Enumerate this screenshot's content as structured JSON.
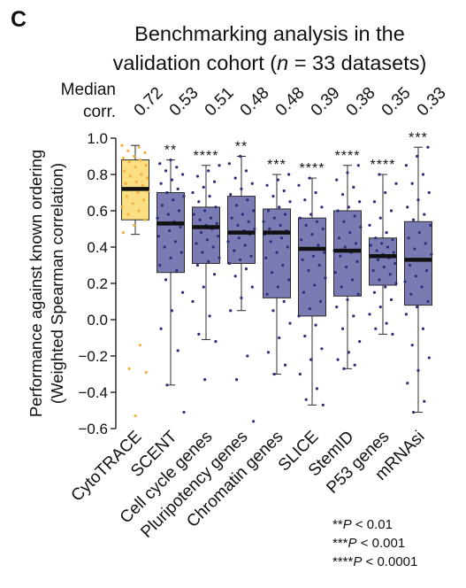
{
  "panel_label": "C",
  "chart_data": {
    "type": "box",
    "title_line1": "Benchmarking analysis in the",
    "title_line2_pre": "validation cohort (",
    "title_line2_n": "n",
    "title_line2_post": " = 33 datasets)",
    "ylabel_line1": "Performance against known ordering",
    "ylabel_line2": "(Weighted Spearman correlation)",
    "median_label_line1": "Median",
    "median_label_line2": "corr.",
    "ylim": [
      -0.6,
      1.0
    ],
    "yticks": [
      "1.0",
      "0.8",
      "0.6",
      "0.4",
      "0.2",
      "0.0",
      "−0.2",
      "−0.4",
      "−0.6"
    ],
    "ytick_values": [
      1.0,
      0.8,
      0.6,
      0.4,
      0.2,
      0.0,
      -0.2,
      -0.4,
      -0.6
    ],
    "categories": [
      "CytoTRACE",
      "SCENT",
      "Cell cycle genes",
      "Pluripotency genes",
      "Chromatin genes",
      "SLICE",
      "StemID",
      "P53 genes",
      "mRNAsi"
    ],
    "medians_text": [
      "0.72",
      "0.53",
      "0.51",
      "0.48",
      "0.48",
      "0.39",
      "0.38",
      "0.35",
      "0.33"
    ],
    "significance": [
      "",
      "**",
      "****",
      "**",
      "***",
      "****",
      "****",
      "****",
      "***"
    ],
    "boxes": [
      {
        "median": 0.72,
        "q1": 0.55,
        "q3": 0.88,
        "whisker_low": 0.47,
        "whisker_high": 0.96,
        "color": "#fcdf82"
      },
      {
        "median": 0.53,
        "q1": 0.26,
        "q3": 0.7,
        "whisker_low": -0.36,
        "whisker_high": 0.88,
        "color": "#7b7bb3"
      },
      {
        "median": 0.51,
        "q1": 0.31,
        "q3": 0.62,
        "whisker_low": -0.11,
        "whisker_high": 0.85,
        "color": "#7b7bb3"
      },
      {
        "median": 0.48,
        "q1": 0.31,
        "q3": 0.68,
        "whisker_low": 0.05,
        "whisker_high": 0.9,
        "color": "#7b7bb3"
      },
      {
        "median": 0.48,
        "q1": 0.12,
        "q3": 0.61,
        "whisker_low": -0.3,
        "whisker_high": 0.8,
        "color": "#7b7bb3"
      },
      {
        "median": 0.39,
        "q1": 0.02,
        "q3": 0.56,
        "whisker_low": -0.47,
        "whisker_high": 0.78,
        "color": "#7b7bb3"
      },
      {
        "median": 0.38,
        "q1": 0.13,
        "q3": 0.6,
        "whisker_low": -0.27,
        "whisker_high": 0.85,
        "color": "#7b7bb3"
      },
      {
        "median": 0.35,
        "q1": 0.19,
        "q3": 0.45,
        "whisker_low": -0.08,
        "whisker_high": 0.8,
        "color": "#7b7bb3"
      },
      {
        "median": 0.33,
        "q1": 0.08,
        "q3": 0.54,
        "whisker_low": -0.51,
        "whisker_high": 0.95,
        "color": "#7b7bb3"
      }
    ],
    "points": [
      [
        0.96,
        0.95,
        0.93,
        0.92,
        0.9,
        0.89,
        0.88,
        0.87,
        0.85,
        0.84,
        0.82,
        0.8,
        0.79,
        0.78,
        0.76,
        0.75,
        0.74,
        0.72,
        0.71,
        0.7,
        0.68,
        0.66,
        0.64,
        0.62,
        0.6,
        0.58,
        0.55,
        0.52,
        0.48,
        -0.14,
        -0.27,
        -0.29,
        -0.53
      ],
      [
        0.88,
        0.86,
        0.84,
        0.82,
        0.8,
        0.77,
        0.75,
        0.72,
        0.7,
        0.68,
        0.66,
        0.63,
        0.6,
        0.58,
        0.56,
        0.54,
        0.53,
        0.51,
        0.49,
        0.46,
        0.43,
        0.4,
        0.37,
        0.34,
        0.3,
        0.27,
        0.22,
        0.15,
        0.05,
        -0.05,
        -0.17,
        -0.36,
        -0.51
      ],
      [
        0.85,
        0.82,
        0.79,
        0.76,
        0.73,
        0.7,
        0.68,
        0.65,
        0.62,
        0.6,
        0.58,
        0.56,
        0.55,
        0.53,
        0.52,
        0.51,
        0.5,
        0.48,
        0.46,
        0.44,
        0.42,
        0.4,
        0.37,
        0.34,
        0.32,
        0.3,
        0.25,
        0.18,
        0.1,
        0.02,
        -0.08,
        -0.12,
        -0.33
      ],
      [
        0.9,
        0.86,
        0.82,
        0.78,
        0.75,
        0.72,
        0.69,
        0.66,
        0.63,
        0.6,
        0.58,
        0.56,
        0.54,
        0.52,
        0.5,
        0.49,
        0.48,
        0.47,
        0.45,
        0.43,
        0.41,
        0.38,
        0.35,
        0.33,
        0.31,
        0.28,
        0.24,
        0.18,
        0.12,
        0.05,
        -0.2,
        -0.33,
        -0.56
      ],
      [
        0.8,
        0.77,
        0.74,
        0.71,
        0.68,
        0.65,
        0.62,
        0.6,
        0.58,
        0.56,
        0.54,
        0.52,
        0.5,
        0.49,
        0.48,
        0.47,
        0.45,
        0.43,
        0.4,
        0.37,
        0.34,
        0.3,
        0.26,
        0.22,
        0.18,
        0.14,
        0.1,
        0.05,
        -0.02,
        -0.1,
        -0.18,
        -0.25,
        -0.3
      ],
      [
        0.78,
        0.74,
        0.7,
        0.66,
        0.62,
        0.58,
        0.56,
        0.54,
        0.52,
        0.5,
        0.47,
        0.44,
        0.41,
        0.39,
        0.37,
        0.35,
        0.33,
        0.3,
        0.27,
        0.23,
        0.19,
        0.15,
        0.1,
        0.06,
        0.02,
        -0.03,
        -0.09,
        -0.16,
        -0.22,
        -0.3,
        -0.38,
        -0.44,
        -0.47
      ],
      [
        0.85,
        0.81,
        0.77,
        0.73,
        0.69,
        0.65,
        0.62,
        0.6,
        0.57,
        0.54,
        0.51,
        0.48,
        0.45,
        0.42,
        0.4,
        0.38,
        0.37,
        0.35,
        0.32,
        0.29,
        0.26,
        0.22,
        0.18,
        0.14,
        0.11,
        0.07,
        0.02,
        -0.05,
        -0.12,
        -0.18,
        -0.22,
        -0.25,
        -0.27
      ],
      [
        0.8,
        0.75,
        0.7,
        0.65,
        0.6,
        0.56,
        0.52,
        0.48,
        0.45,
        0.44,
        0.42,
        0.41,
        0.4,
        0.38,
        0.37,
        0.36,
        0.35,
        0.34,
        0.33,
        0.31,
        0.29,
        0.27,
        0.25,
        0.22,
        0.2,
        0.18,
        0.15,
        0.11,
        0.07,
        0.03,
        -0.02,
        -0.05,
        -0.08
      ],
      [
        0.95,
        0.9,
        0.85,
        0.8,
        0.75,
        0.7,
        0.66,
        0.62,
        0.58,
        0.55,
        0.52,
        0.48,
        0.45,
        0.42,
        0.39,
        0.36,
        0.33,
        0.3,
        0.27,
        0.24,
        0.21,
        0.18,
        0.14,
        0.1,
        0.07,
        0.03,
        -0.05,
        -0.14,
        -0.21,
        -0.28,
        -0.35,
        -0.45,
        -0.51
      ]
    ],
    "legend": [
      {
        "stars": "**",
        "var": "P",
        "text": " < 0.01"
      },
      {
        "stars": "***",
        "var": "P",
        "text": " < 0.001"
      },
      {
        "stars": "****",
        "var": "P",
        "text": " < 0.0001"
      }
    ],
    "point_colors": [
      "#f5b041",
      "#2e2e7a"
    ],
    "grid": false,
    "legend_position": "bottom-right"
  }
}
